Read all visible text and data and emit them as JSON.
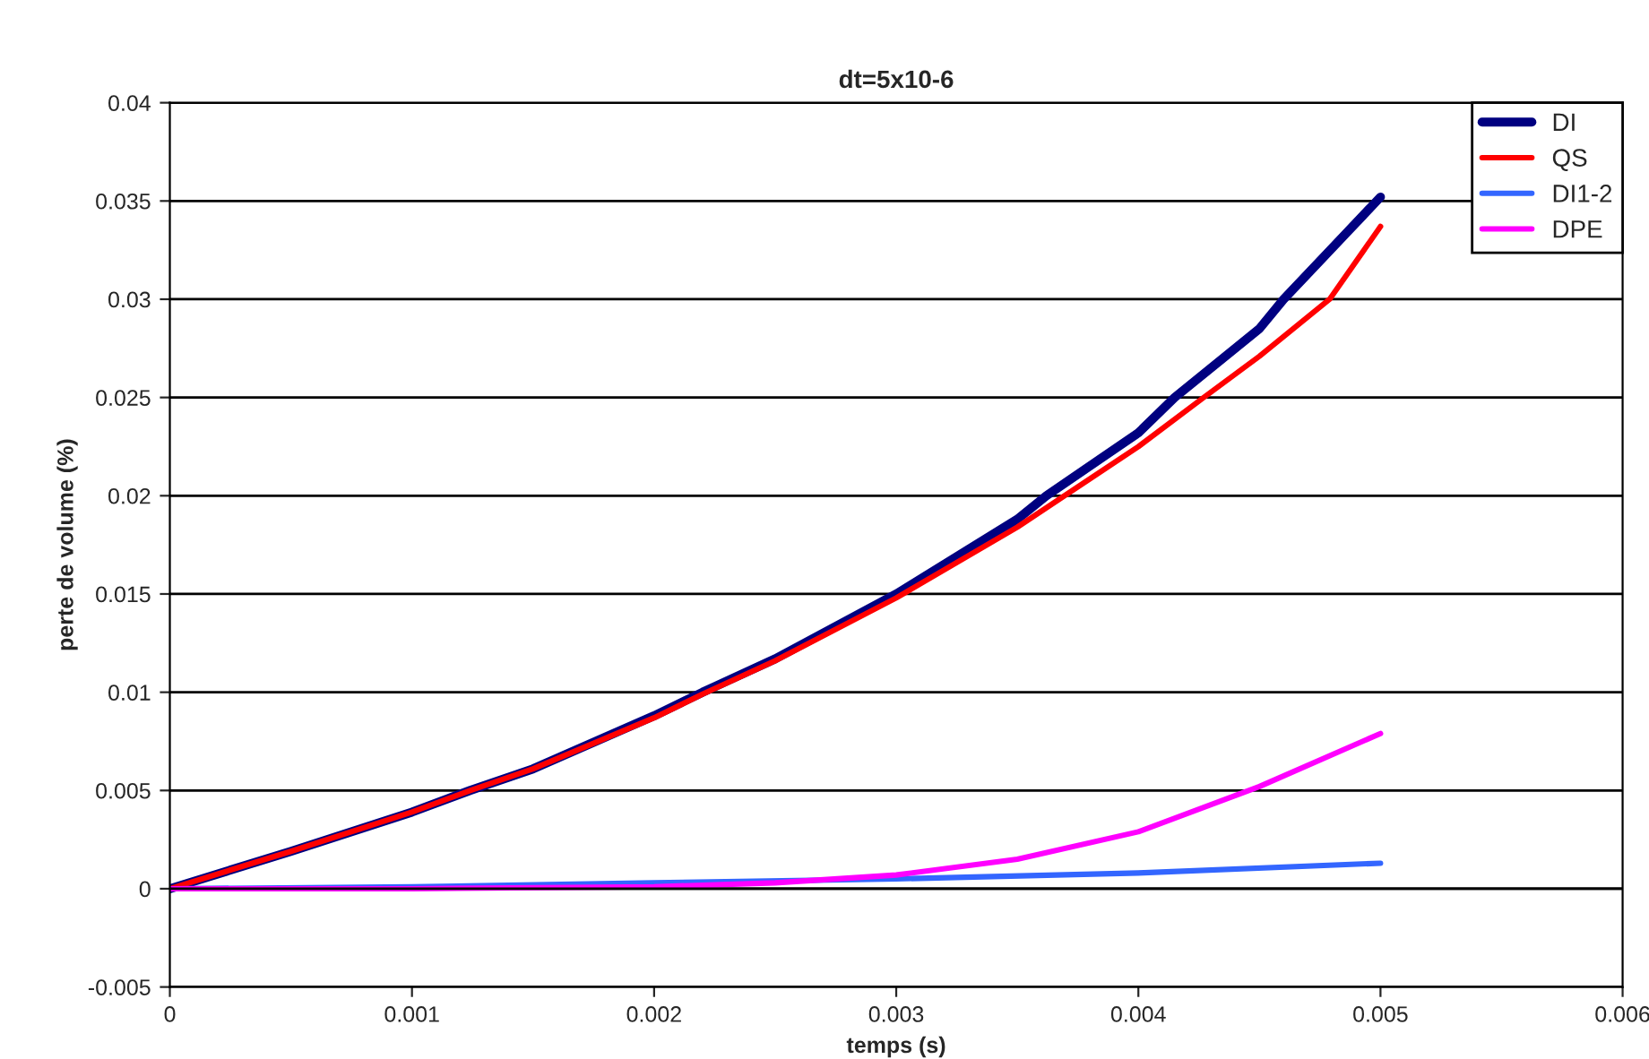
{
  "chart_data": {
    "type": "line",
    "title": "dt=5x10-6",
    "xlabel": "temps (s)",
    "ylabel": "perte de volume (%)",
    "xlim": [
      0,
      0.006
    ],
    "xticks": [
      0,
      0.001,
      0.002,
      0.003,
      0.004,
      0.005,
      0.006
    ],
    "ylim": [
      -0.005,
      0.04
    ],
    "yticks": [
      -0.005,
      0,
      0.005,
      0.01,
      0.015,
      0.02,
      0.025,
      0.03,
      0.035,
      0.04
    ],
    "grid": "y",
    "legend": "top right",
    "marker": "none",
    "line_style": "solid",
    "series": [
      {
        "name": "DI",
        "color": "#000080",
        "x": [
          0,
          0.0005,
          0.001,
          0.00124,
          0.0015,
          0.002,
          0.0022,
          0.0025,
          0.003,
          0.0035,
          0.00362,
          0.004,
          0.00415,
          0.0045,
          0.0046,
          0.005
        ],
        "values": [
          0,
          0.0019,
          0.0039,
          0.005,
          0.0061,
          0.0088,
          0.01,
          0.0117,
          0.015,
          0.0188,
          0.02,
          0.0232,
          0.025,
          0.0285,
          0.03,
          0.0352
        ]
      },
      {
        "name": "QS",
        "color": "#ff0000",
        "x": [
          0,
          0.0005,
          0.001,
          0.00124,
          0.0015,
          0.002,
          0.0022,
          0.0025,
          0.003,
          0.0035,
          0.004,
          0.00427,
          0.0045,
          0.00479,
          0.005
        ],
        "values": [
          0,
          0.0019,
          0.0039,
          0.005,
          0.0061,
          0.0087,
          0.0099,
          0.0116,
          0.0148,
          0.0184,
          0.0225,
          0.025,
          0.0271,
          0.03,
          0.0337
        ]
      },
      {
        "name": "DI1-2",
        "color": "#3366ff",
        "x": [
          0,
          0.001,
          0.002,
          0.003,
          0.004,
          0.005
        ],
        "values": [
          0,
          0.0001,
          0.0003,
          0.0005,
          0.0008,
          0.0013
        ]
      },
      {
        "name": "DPE",
        "color": "#ff00ff",
        "x": [
          0,
          0.001,
          0.002,
          0.0025,
          0.003,
          0.0035,
          0.004,
          0.0045,
          0.005
        ],
        "values": [
          0,
          0,
          0.0001,
          0.0003,
          0.0007,
          0.0015,
          0.0029,
          0.0052,
          0.0079
        ]
      }
    ]
  }
}
